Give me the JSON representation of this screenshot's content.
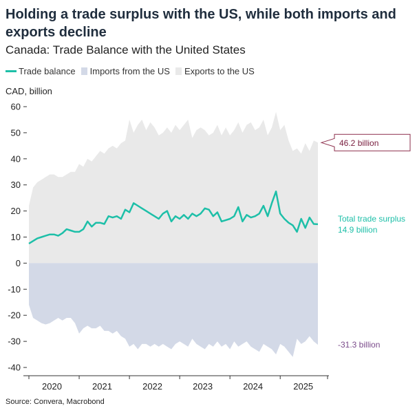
{
  "header": {
    "title": "Holding a trade surplus with the US, while both imports and exports decline",
    "subtitle": "Canada: Trade Balance with the United States"
  },
  "legend": {
    "trade_balance": "Trade balance",
    "imports": "Imports from the US",
    "exports": "Exports to the US"
  },
  "colors": {
    "trade_balance": "#1dbfa8",
    "imports": "#d3d9e7",
    "exports": "#e9e9e9",
    "export_label_border": "#8b2c4a",
    "export_label_text": "#7a2040",
    "imports_label_text": "#7a4a8a",
    "surplus_label_text": "#1dbfa8"
  },
  "footer": {
    "source": "Source: Convera, Macrobond"
  },
  "chart_data": {
    "type": "area",
    "ylabel": "CAD, billion",
    "ylim": [
      -40,
      60
    ],
    "yticks": [
      60,
      50,
      40,
      30,
      20,
      10,
      0,
      -10,
      -20,
      -30,
      -40
    ],
    "xticks": [
      "2020",
      "2021",
      "2022",
      "2023",
      "2024",
      "2025"
    ],
    "x_start": "2020-01",
    "x_end": "2025-06",
    "grid": false,
    "legend_position": "top-left",
    "series": [
      {
        "name": "Exports to the US",
        "values": [
          22,
          29,
          31,
          32,
          33,
          34,
          34,
          33,
          33,
          34,
          35,
          35,
          38,
          37,
          40,
          39,
          41,
          43,
          42,
          44,
          45,
          44,
          46,
          47,
          55,
          50,
          53,
          55,
          51,
          54,
          52,
          49,
          50,
          52,
          50,
          53,
          51,
          53,
          55,
          48,
          51,
          52,
          51,
          49,
          50,
          53,
          49,
          52,
          49,
          51,
          54,
          50,
          53,
          54,
          51,
          52,
          55,
          49,
          52,
          58,
          51,
          53,
          47,
          43,
          44,
          42,
          46,
          43,
          47,
          46.2
        ]
      },
      {
        "name": "Imports from the US",
        "values": [
          -16,
          -21,
          -22,
          -23,
          -23.5,
          -23,
          -22,
          -21,
          -22,
          -21,
          -21,
          -23,
          -27,
          -25,
          -24,
          -25,
          -25,
          -24,
          -26,
          -26,
          -27,
          -26,
          -28,
          -29,
          -32,
          -31,
          -33,
          -31,
          -31,
          -32,
          -31,
          -32,
          -31,
          -32,
          -33,
          -31,
          -30,
          -31,
          -32,
          -29,
          -31,
          -32,
          -33,
          -31,
          -32,
          -30,
          -32,
          -31,
          -33,
          -30,
          -32,
          -31,
          -30,
          -32,
          -33,
          -34,
          -31,
          -32,
          -33,
          -35,
          -31,
          -32,
          -34,
          -36,
          -29,
          -31,
          -30,
          -28,
          -30,
          -31.3
        ]
      },
      {
        "name": "Trade balance",
        "values": [
          7.5,
          8.5,
          9.5,
          10,
          10.5,
          11,
          11,
          10.5,
          11.5,
          13,
          12.5,
          12,
          12,
          13,
          16,
          14,
          15.5,
          15.5,
          15,
          18,
          17.5,
          18,
          17,
          20.5,
          19.5,
          23,
          22,
          21,
          20,
          19,
          18,
          17,
          19,
          20,
          16,
          18,
          17,
          18.5,
          17,
          19,
          18,
          19,
          21,
          20.5,
          18,
          19.5,
          16,
          16.5,
          17,
          18,
          21.5,
          16,
          18.5,
          17.5,
          18,
          19,
          22,
          18,
          23,
          27.5,
          19,
          17,
          15.5,
          14.5,
          12,
          17,
          13.5,
          17.5,
          15,
          14.9
        ]
      }
    ],
    "annotations": {
      "exports_last": "46.2 billion",
      "surplus_title": "Total trade surplus",
      "surplus_value": "14.9 billion",
      "imports_last": "-31.3 billion"
    }
  }
}
